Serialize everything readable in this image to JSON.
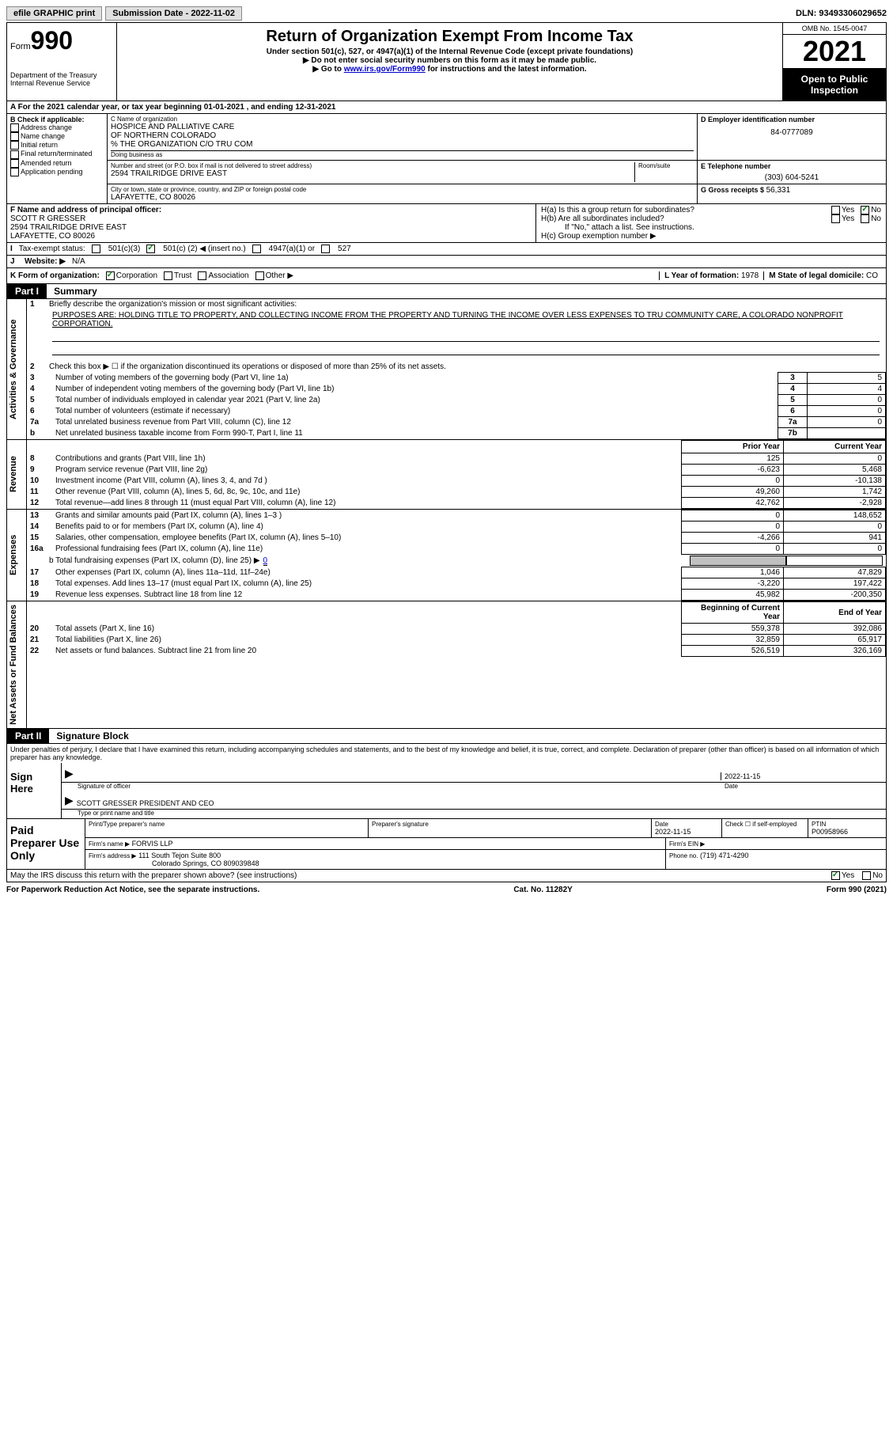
{
  "topbar": {
    "efile_label": "efile GRAPHIC print",
    "submission_label": "Submission Date - 2022-11-02",
    "dln": "DLN: 93493306029652"
  },
  "header": {
    "form_word": "Form",
    "form_num": "990",
    "dept": "Department of the Treasury",
    "irs": "Internal Revenue Service",
    "title": "Return of Organization Exempt From Income Tax",
    "sub1": "Under section 501(c), 527, or 4947(a)(1) of the Internal Revenue Code (except private foundations)",
    "sub2": "▶ Do not enter social security numbers on this form as it may be made public.",
    "sub3_pre": "▶ Go to ",
    "sub3_link": "www.irs.gov/Form990",
    "sub3_post": " for instructions and the latest information.",
    "omb": "OMB No. 1545-0047",
    "year": "2021",
    "open": "Open to Public Inspection"
  },
  "row_a": "A For the 2021 calendar year, or tax year beginning 01-01-2021    , and ending 12-31-2021",
  "box_b": {
    "label": "B Check if applicable:",
    "items": [
      "Address change",
      "Name change",
      "Initial return",
      "Final return/terminated",
      "Amended return",
      "Application pending"
    ]
  },
  "box_c": {
    "label": "C Name of organization",
    "name1": "HOSPICE AND PALLIATIVE CARE",
    "name2": "OF NORTHERN COLORADO",
    "name3": "% THE ORGANIZATION C/O TRU COM",
    "dba_label": "Doing business as",
    "addr_label": "Number and street (or P.O. box if mail is not delivered to street address)",
    "room_label": "Room/suite",
    "addr": "2594 TRAILRIDGE DRIVE EAST",
    "city_label": "City or town, state or province, country, and ZIP or foreign postal code",
    "city": "LAFAYETTE, CO  80026"
  },
  "box_d": {
    "label": "D Employer identification number",
    "val": "84-0777089"
  },
  "box_e": {
    "label": "E Telephone number",
    "val": "(303) 604-5241"
  },
  "box_g": {
    "label": "G Gross receipts $",
    "val": "56,331"
  },
  "box_f": {
    "label": "F  Name and address of principal officer:",
    "name": "SCOTT R GRESSER",
    "addr1": "2594 TRAILRIDGE DRIVE EAST",
    "addr2": "LAFAYETTE, CO  80026"
  },
  "box_h": {
    "a_label": "H(a)  Is this a group return for subordinates?",
    "b_label": "H(b)  Are all subordinates included?",
    "b_note": "If \"No,\" attach a list. See instructions.",
    "c_label": "H(c)  Group exemption number ▶",
    "yes": "Yes",
    "no": "No"
  },
  "status": {
    "label_i": "I",
    "label": "Tax-exempt status:",
    "c3": "501(c)(3)",
    "c_pre": "501(c) (",
    "c_num": "2",
    "c_post": ") ◀ (insert no.)",
    "a1": "4947(a)(1) or",
    "s527": "527"
  },
  "website": {
    "j": "J",
    "label": "Website: ▶",
    "val": "N/A"
  },
  "row_k": {
    "label": "K Form of organization:",
    "corp": "Corporation",
    "trust": "Trust",
    "assoc": "Association",
    "other": "Other ▶",
    "l_label": "L Year of formation:",
    "l_val": "1978",
    "m_label": "M State of legal domicile:",
    "m_val": "CO"
  },
  "part1": {
    "header": "Part I",
    "title": "Summary",
    "side_activities": "Activities & Governance",
    "side_revenue": "Revenue",
    "side_expenses": "Expenses",
    "side_net": "Net Assets or Fund Balances",
    "l1_label": "Briefly describe the organization's mission or most significant activities:",
    "l1_text": "PURPOSES ARE: HOLDING TITLE TO PROPERTY, AND COLLECTING INCOME FROM THE PROPERTY AND TURNING THE INCOME OVER LESS EXPENSES TO TRU COMMUNITY CARE, A COLORADO NONPROFIT CORPORATION.",
    "l2": "Check this box ▶ ☐  if the organization discontinued its operations or disposed of more than 25% of its net assets.",
    "lines_a": [
      {
        "n": "3",
        "t": "Number of voting members of the governing body (Part VI, line 1a)",
        "box": "3",
        "v": "5"
      },
      {
        "n": "4",
        "t": "Number of independent voting members of the governing body (Part VI, line 1b)",
        "box": "4",
        "v": "4"
      },
      {
        "n": "5",
        "t": "Total number of individuals employed in calendar year 2021 (Part V, line 2a)",
        "box": "5",
        "v": "0"
      },
      {
        "n": "6",
        "t": "Total number of volunteers (estimate if necessary)",
        "box": "6",
        "v": "0"
      },
      {
        "n": "7a",
        "t": "Total unrelated business revenue from Part VIII, column (C), line 12",
        "box": "7a",
        "v": "0"
      },
      {
        "n": "b",
        "t": "Net unrelated business taxable income from Form 990-T, Part I, line 11",
        "box": "7b",
        "v": ""
      }
    ],
    "col_prior": "Prior Year",
    "col_curr": "Current Year",
    "rev_rows": [
      {
        "n": "8",
        "t": "Contributions and grants (Part VIII, line 1h)",
        "p": "125",
        "c": "0"
      },
      {
        "n": "9",
        "t": "Program service revenue (Part VIII, line 2g)",
        "p": "-6,623",
        "c": "5,468"
      },
      {
        "n": "10",
        "t": "Investment income (Part VIII, column (A), lines 3, 4, and 7d )",
        "p": "0",
        "c": "-10,138"
      },
      {
        "n": "11",
        "t": "Other revenue (Part VIII, column (A), lines 5, 6d, 8c, 9c, 10c, and 11e)",
        "p": "49,260",
        "c": "1,742"
      },
      {
        "n": "12",
        "t": "Total revenue—add lines 8 through 11 (must equal Part VIII, column (A), line 12)",
        "p": "42,762",
        "c": "-2,928"
      }
    ],
    "exp_rows": [
      {
        "n": "13",
        "t": "Grants and similar amounts paid (Part IX, column (A), lines 1–3 )",
        "p": "0",
        "c": "148,652"
      },
      {
        "n": "14",
        "t": "Benefits paid to or for members (Part IX, column (A), line 4)",
        "p": "0",
        "c": "0"
      },
      {
        "n": "15",
        "t": "Salaries, other compensation, employee benefits (Part IX, column (A), lines 5–10)",
        "p": "-4,266",
        "c": "941"
      },
      {
        "n": "16a",
        "t": "Professional fundraising fees (Part IX, column (A), line 11e)",
        "p": "0",
        "c": "0"
      }
    ],
    "l16b_pre": "b   Total fundraising expenses (Part IX, column (D), line 25) ▶",
    "l16b_val": "0",
    "exp_rows2": [
      {
        "n": "17",
        "t": "Other expenses (Part IX, column (A), lines 11a–11d, 11f–24e)",
        "p": "1,046",
        "c": "47,829"
      },
      {
        "n": "18",
        "t": "Total expenses. Add lines 13–17 (must equal Part IX, column (A), line 25)",
        "p": "-3,220",
        "c": "197,422"
      },
      {
        "n": "19",
        "t": "Revenue less expenses. Subtract line 18 from line 12",
        "p": "45,982",
        "c": "-200,350"
      }
    ],
    "col_begin": "Beginning of Current Year",
    "col_end": "End of Year",
    "net_rows": [
      {
        "n": "20",
        "t": "Total assets (Part X, line 16)",
        "p": "559,378",
        "c": "392,086"
      },
      {
        "n": "21",
        "t": "Total liabilities (Part X, line 26)",
        "p": "32,859",
        "c": "65,917"
      },
      {
        "n": "22",
        "t": "Net assets or fund balances. Subtract line 21 from line 20",
        "p": "526,519",
        "c": "326,169"
      }
    ]
  },
  "part2": {
    "header": "Part II",
    "title": "Signature Block",
    "decl": "Under penalties of perjury, I declare that I have examined this return, including accompanying schedules and statements, and to the best of my knowledge and belief, it is true, correct, and complete. Declaration of preparer (other than officer) is based on all information of which preparer has any knowledge.",
    "sign_here": "Sign Here",
    "sig_officer": "Signature of officer",
    "sig_date": "2022-11-15",
    "date_label": "Date",
    "sig_name": "SCOTT GRESSER  PRESIDENT AND CEO",
    "sig_name_label": "Type or print name and title",
    "paid": "Paid Preparer Use Only",
    "p_name_label": "Print/Type preparer's name",
    "p_sig_label": "Preparer's signature",
    "p_date_label": "Date",
    "p_date": "2022-11-15",
    "p_check_label": "Check ☐ if self-employed",
    "ptin_label": "PTIN",
    "ptin": "P00958966",
    "firm_name_label": "Firm's name      ▶",
    "firm_name": "FORVIS LLP",
    "firm_ein_label": "Firm's EIN ▶",
    "firm_addr_label": "Firm's address ▶",
    "firm_addr1": "111 South Tejon Suite 800",
    "firm_addr2": "Colorado Springs, CO  809039848",
    "phone_label": "Phone no.",
    "phone": "(719) 471-4290",
    "discuss": "May the IRS discuss this return with the preparer shown above? (see instructions)",
    "yes": "Yes",
    "no": "No"
  },
  "footer": {
    "pra": "For Paperwork Reduction Act Notice, see the separate instructions.",
    "cat": "Cat. No. 11282Y",
    "form": "Form 990 (2021)"
  }
}
